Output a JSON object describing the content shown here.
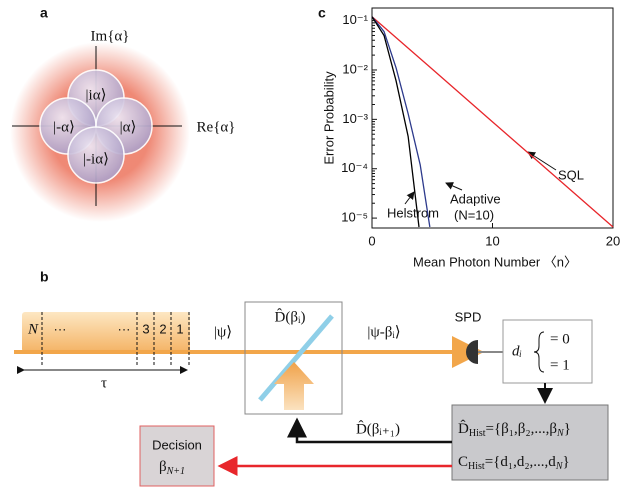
{
  "panel_a": {
    "label": "a",
    "im_axis": "Im{α}",
    "re_axis": "Re{α}",
    "states": [
      "|iα⟩",
      "|-α⟩",
      "|α⟩",
      "|-iα⟩"
    ]
  },
  "chart_data": {
    "type": "line",
    "panel_label": "c",
    "x_label": "Mean Photon Number 〈n〉",
    "y_label": "Error Probability",
    "y_scale": "log",
    "xlim": [
      0,
      20
    ],
    "ylim": [
      6.3e-06,
      0.18
    ],
    "xticks": [
      0,
      10,
      20
    ],
    "yticks": [
      {
        "value": 0.1,
        "label": "10⁻¹"
      },
      {
        "value": 0.01,
        "label": "10⁻²"
      },
      {
        "value": 0.001,
        "label": "10⁻³"
      },
      {
        "value": 0.0001,
        "label": "10⁻⁴"
      },
      {
        "value": 1e-05,
        "label": "10⁻⁵"
      }
    ],
    "series": [
      {
        "name": "SQL",
        "color": "#e8262b",
        "x": [
          0,
          5,
          10,
          15,
          20
        ],
        "values": [
          0.12,
          0.0104,
          0.00089,
          7.7e-05,
          6.6e-06
        ]
      },
      {
        "name": "Adaptive",
        "color": "#2d3a8c",
        "x": [
          0,
          1,
          2,
          3,
          4,
          4.8
        ],
        "values": [
          0.12,
          0.06,
          0.011,
          0.0013,
          0.00012,
          6.6e-06
        ]
      },
      {
        "name": "Helstrom",
        "color": "#000000",
        "x": [
          0,
          1,
          2,
          3,
          3.9
        ],
        "values": [
          0.12,
          0.05,
          0.006,
          0.00045,
          6.6e-06
        ]
      }
    ],
    "annotations": {
      "sql": "SQL",
      "adaptive": "Adaptive",
      "adaptive_n": "(N=10)",
      "helstrom": "Helstrom"
    }
  },
  "panel_b": {
    "label": "b",
    "pulse": {
      "n": "N",
      "dots_left": "···",
      "dots_right": "···",
      "three": "3",
      "two": "2",
      "one": "1",
      "tau": "τ"
    },
    "psi": "|ψ⟩",
    "displacement": "D̂(βᵢ)",
    "psi_out": "|ψ-βᵢ⟩",
    "spd": "SPD",
    "outcome": {
      "d": "dᵢ",
      "zero": "= 0",
      "one": "= 1"
    },
    "feedback": "D̂(βᵢ₊₁)",
    "hist_d": {
      "symbol": "D̂",
      "sub": "Hist",
      "rest": "={β₁,β₂,...,β",
      "sub_n": "N",
      "end": "}"
    },
    "hist_c": {
      "symbol": "C",
      "sub": "Hist",
      "rest": "={d₁,d₂,...,d",
      "sub_n": "N",
      "end": "}"
    },
    "decision": {
      "title": "Decision",
      "beta": "β",
      "sub": "N+1"
    }
  }
}
